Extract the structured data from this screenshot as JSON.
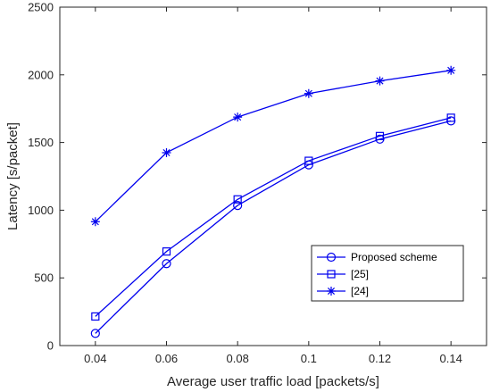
{
  "chart_data": {
    "type": "line",
    "title": "",
    "xlabel": "Average user traffic load [packets/s]",
    "ylabel": "Latency [s/packet]",
    "x": [
      0.04,
      0.06,
      0.08,
      0.1,
      0.12,
      0.14
    ],
    "x_tick_labels": [
      "0.04",
      "0.06",
      "0.08",
      "0.1",
      "0.12",
      "0.14"
    ],
    "y_tick_labels": [
      "0",
      "500",
      "1000",
      "1500",
      "2000",
      "2500"
    ],
    "xlim": [
      0.03,
      0.15
    ],
    "ylim": [
      0,
      2500
    ],
    "grid": false,
    "legend_position": "lower-right",
    "series": [
      {
        "name": "Proposed scheme",
        "marker": "circle",
        "color": "#0000ee",
        "values": [
          90,
          605,
          1035,
          1335,
          1525,
          1660
        ]
      },
      {
        "name": "[25]",
        "marker": "square",
        "color": "#0000ee",
        "values": [
          215,
          695,
          1080,
          1365,
          1548,
          1683
        ]
      },
      {
        "name": "[24]",
        "marker": "asterisk",
        "color": "#0000ee",
        "values": [
          915,
          1425,
          1688,
          1862,
          1955,
          2033
        ]
      }
    ]
  }
}
